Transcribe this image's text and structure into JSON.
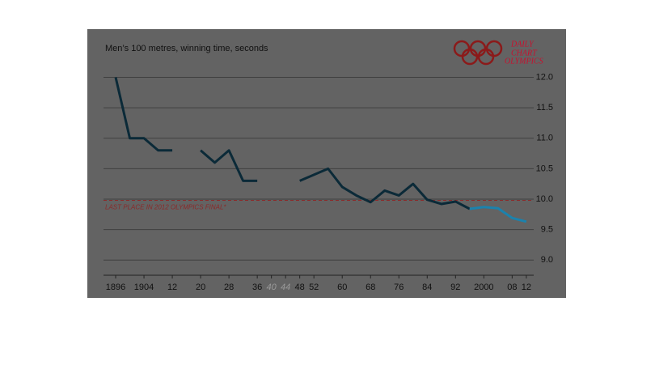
{
  "chart_data": {
    "type": "line",
    "title": "Men’s 100 metres, winning time, seconds",
    "logo_text": [
      "DAILY",
      "CHART",
      "OLYMPICS"
    ],
    "x": [
      1896,
      1900,
      1904,
      1908,
      1912,
      1916,
      1920,
      1924,
      1928,
      1932,
      1936,
      1940,
      1944,
      1948,
      1952,
      1956,
      1960,
      1964,
      1968,
      1972,
      1976,
      1980,
      1984,
      1988,
      1992,
      1996,
      2000,
      2004,
      2008,
      2012
    ],
    "series": [
      {
        "color": "#0b2a38",
        "values": [
          12.0,
          11.0,
          11.0,
          10.8,
          10.8,
          null,
          10.8,
          10.6,
          10.8,
          10.3,
          10.3,
          null,
          null,
          10.3,
          10.4,
          10.5,
          10.2,
          10.06,
          9.95,
          10.14,
          10.06,
          10.25,
          9.99,
          9.92,
          9.96,
          9.84,
          null,
          null,
          null,
          null
        ]
      },
      {
        "color": "#1b82ad",
        "values": [
          null,
          null,
          null,
          null,
          null,
          null,
          null,
          null,
          null,
          null,
          null,
          null,
          null,
          null,
          null,
          null,
          null,
          null,
          null,
          null,
          null,
          null,
          null,
          null,
          null,
          9.84,
          9.87,
          9.85,
          9.69,
          9.63
        ]
      }
    ],
    "reference_line": {
      "value": 9.98,
      "label": "LAST PLACE IN 2012 OLYMPICS FINAL*",
      "color": "#8b2a2a"
    },
    "xlim": [
      1888,
      2015
    ],
    "xticks": [
      {
        "value": 1896,
        "label": "1896"
      },
      {
        "value": 1904,
        "label": "1904"
      },
      {
        "value": 1912,
        "label": "12"
      },
      {
        "value": 1920,
        "label": "20"
      },
      {
        "value": 1928,
        "label": "28"
      },
      {
        "value": 1936,
        "label": "36"
      },
      {
        "value": 1940,
        "label": "40",
        "muted": true
      },
      {
        "value": 1944,
        "label": "44",
        "muted": true
      },
      {
        "value": 1948,
        "label": "48"
      },
      {
        "value": 1952,
        "label": "52"
      },
      {
        "value": 1960,
        "label": "60"
      },
      {
        "value": 1968,
        "label": "68"
      },
      {
        "value": 1976,
        "label": "76"
      },
      {
        "value": 1984,
        "label": "84"
      },
      {
        "value": 1992,
        "label": "92"
      },
      {
        "value": 2000,
        "label": "2000"
      },
      {
        "value": 2008,
        "label": "08"
      },
      {
        "value": 2012,
        "label": "12"
      }
    ],
    "ylim": [
      8.75,
      12.1
    ],
    "yticks": [
      {
        "value": 9.0,
        "label": "9.0"
      },
      {
        "value": 9.5,
        "label": "9.5"
      },
      {
        "value": 10.0,
        "label": "10.0"
      },
      {
        "value": 10.5,
        "label": "10.5"
      },
      {
        "value": 11.0,
        "label": "11.0"
      },
      {
        "value": 11.5,
        "label": "11.5"
      },
      {
        "value": 12.0,
        "label": "12.0"
      }
    ],
    "grid": true
  }
}
